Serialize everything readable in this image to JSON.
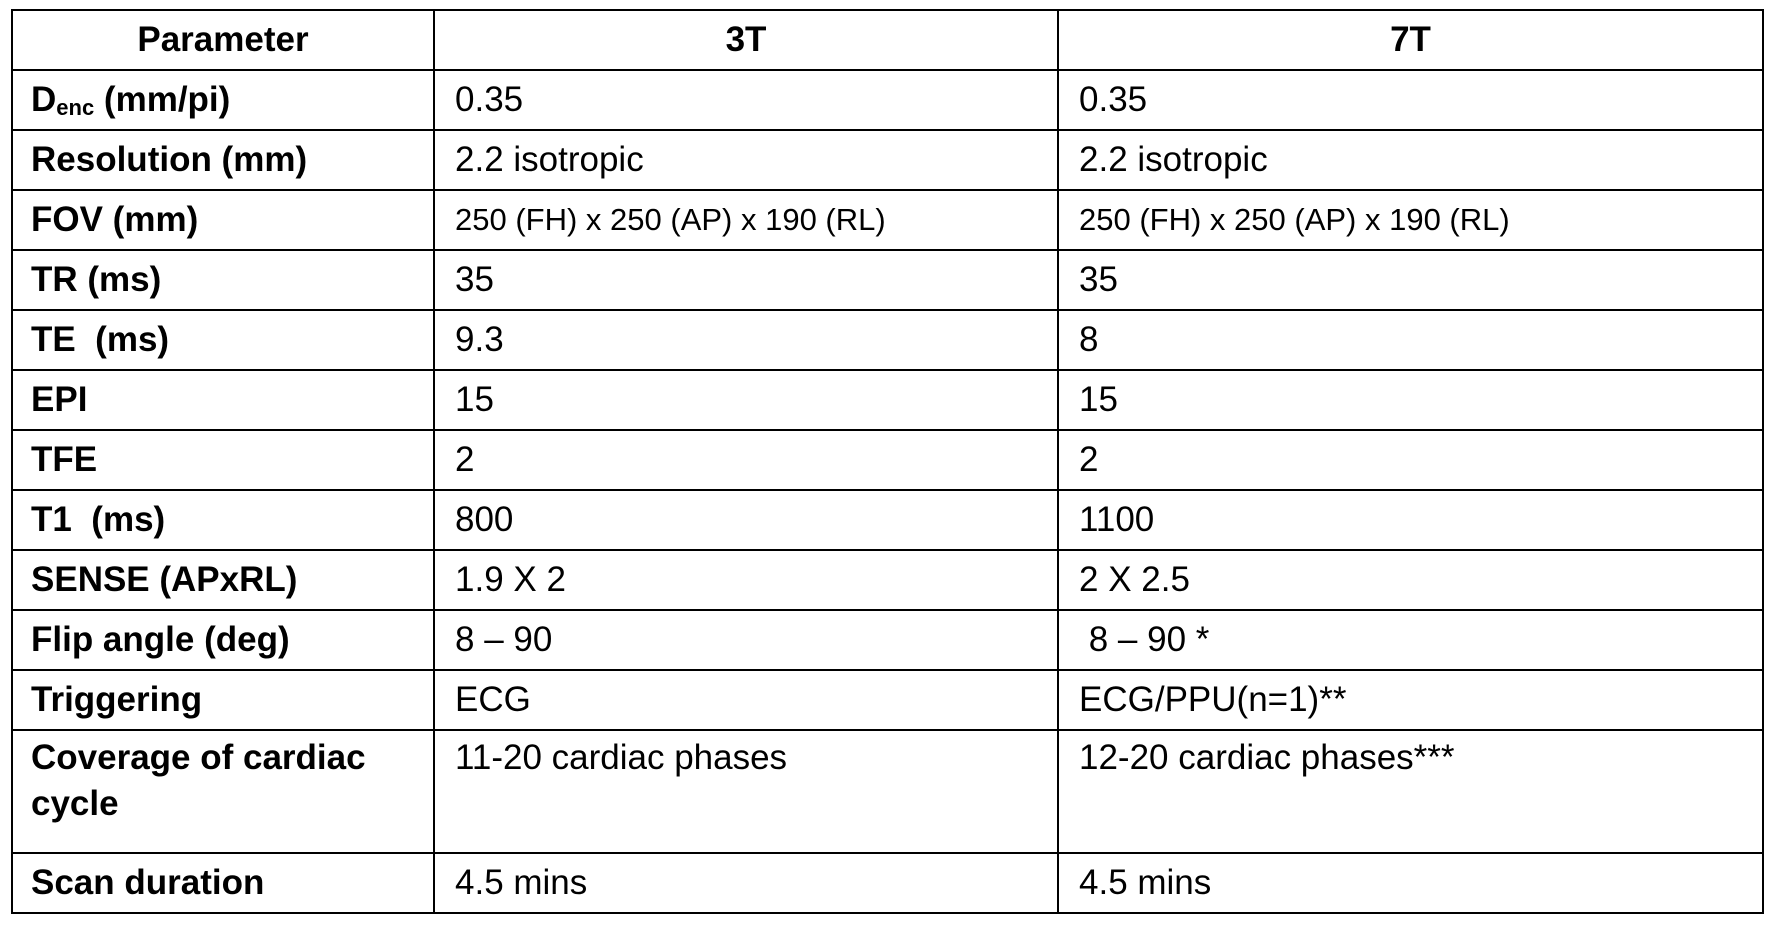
{
  "table": {
    "header": [
      "Parameter",
      "3T",
      "7T"
    ],
    "denc": {
      "main": "D",
      "sub": "enc",
      "rest": " (mm/pi)",
      "t3": "0.35",
      "t7": "0.35"
    },
    "rows": [
      [
        "Resolution (mm)",
        "2.2 isotropic",
        "2.2 isotropic"
      ],
      [
        "FOV (mm)",
        "250 (FH) x 250 (AP) x 190 (RL)",
        "250 (FH) x 250 (AP) x 190 (RL)"
      ],
      [
        "TR (ms)",
        "35",
        "35"
      ],
      [
        "TE  (ms)",
        "9.3",
        "8"
      ],
      [
        "EPI",
        "15",
        "15"
      ],
      [
        "TFE",
        "2",
        "2"
      ],
      [
        "T1  (ms)",
        "800",
        "1100"
      ],
      [
        "SENSE (APxRL)",
        "1.9 X 2",
        "2 X 2.5"
      ],
      [
        "Flip angle (deg)",
        "8 – 90",
        " 8 – 90 *"
      ],
      [
        "Triggering",
        "ECG",
        "ECG/PPU(n=1)**"
      ],
      [
        "Coverage of cardiac cycle",
        "11-20 cardiac phases",
        "12-20 cardiac phases***"
      ],
      [
        "Scan duration",
        "4.5 mins",
        "4.5 mins"
      ]
    ]
  }
}
